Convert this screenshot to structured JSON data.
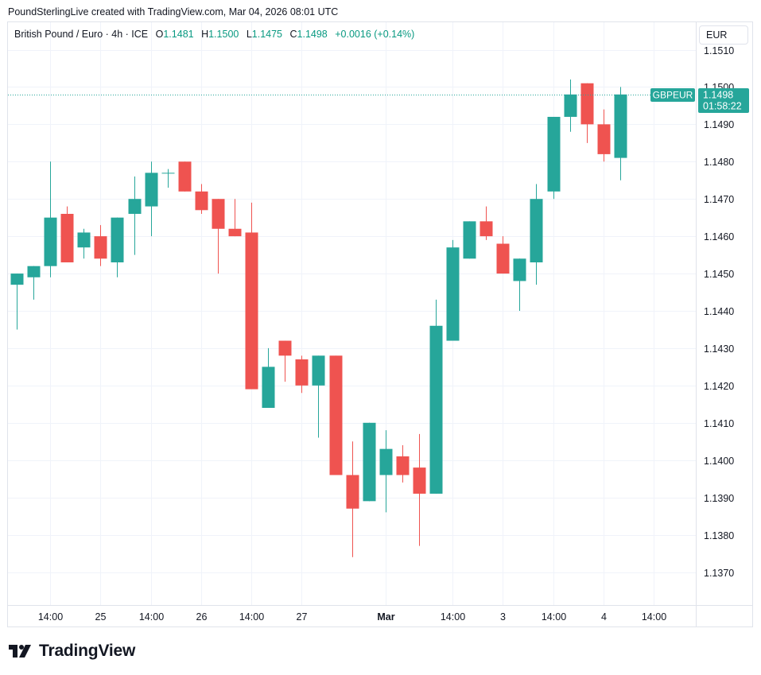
{
  "header": {
    "credit": "PoundSterlingLive created with TradingView.com, Mar 04, 2026 08:01 UTC"
  },
  "legend": {
    "symbol": "British Pound / Euro · 4h · ICE",
    "open_label": "O",
    "open": "1.1481",
    "high_label": "H",
    "high": "1.1500",
    "low_label": "L",
    "low": "1.1475",
    "close_label": "C",
    "close": "1.1498",
    "change": "+0.0016 (+0.14%)"
  },
  "currency": "EUR",
  "price_tag": {
    "symbol": "GBPEUR",
    "price": "1.1498",
    "countdown": "01:58:22"
  },
  "brand": {
    "name": "TradingView",
    "logo_icon": "tradingview-logo-icon"
  },
  "colors": {
    "up": "#26a69a",
    "down": "#ef5350",
    "grid": "#f0f3fa",
    "text": "#131722",
    "last_price_line": "#26a69a"
  },
  "chart_data": {
    "type": "candlestick",
    "title": "British Pound / Euro · 4h · ICE",
    "ylim": [
      1.1362,
      1.1518
    ],
    "y_ticks": [
      "1.1370",
      "1.1380",
      "1.1390",
      "1.1400",
      "1.1410",
      "1.1420",
      "1.1430",
      "1.1440",
      "1.1450",
      "1.1460",
      "1.1470",
      "1.1480",
      "1.1490",
      "1.1500",
      "1.1510"
    ],
    "x_labels": [
      {
        "slot": 2,
        "label": "14:00",
        "bold": false
      },
      {
        "slot": 5,
        "label": "25",
        "bold": false
      },
      {
        "slot": 8,
        "label": "14:00",
        "bold": false
      },
      {
        "slot": 11,
        "label": "26",
        "bold": false
      },
      {
        "slot": 14,
        "label": "14:00",
        "bold": false
      },
      {
        "slot": 17,
        "label": "27",
        "bold": false
      },
      {
        "slot": 22,
        "label": "Mar",
        "bold": true
      },
      {
        "slot": 26,
        "label": "14:00",
        "bold": false
      },
      {
        "slot": 29,
        "label": "3",
        "bold": false
      },
      {
        "slot": 32,
        "label": "14:00",
        "bold": false
      },
      {
        "slot": 35,
        "label": "4",
        "bold": false
      },
      {
        "slot": 38,
        "label": "14:00",
        "bold": false
      }
    ],
    "last_price": 1.1498,
    "candles": [
      {
        "o": 1.1447,
        "h": 1.145,
        "l": 1.1435,
        "c": 1.145
      },
      {
        "o": 1.1449,
        "h": 1.1452,
        "l": 1.1443,
        "c": 1.1452
      },
      {
        "o": 1.1452,
        "h": 1.148,
        "l": 1.1449,
        "c": 1.1465
      },
      {
        "o": 1.1466,
        "h": 1.1468,
        "l": 1.1453,
        "c": 1.1453
      },
      {
        "o": 1.1457,
        "h": 1.1462,
        "l": 1.1454,
        "c": 1.1461
      },
      {
        "o": 1.146,
        "h": 1.1463,
        "l": 1.1452,
        "c": 1.1454
      },
      {
        "o": 1.1453,
        "h": 1.1465,
        "l": 1.1449,
        "c": 1.1465
      },
      {
        "o": 1.1466,
        "h": 1.1476,
        "l": 1.1455,
        "c": 1.147
      },
      {
        "o": 1.1468,
        "h": 1.148,
        "l": 1.146,
        "c": 1.1477
      },
      {
        "o": 1.1477,
        "h": 1.1478,
        "l": 1.1473,
        "c": 1.1477
      },
      {
        "o": 1.148,
        "h": 1.148,
        "l": 1.1472,
        "c": 1.1472
      },
      {
        "o": 1.1472,
        "h": 1.1474,
        "l": 1.1466,
        "c": 1.1467
      },
      {
        "o": 1.147,
        "h": 1.147,
        "l": 1.145,
        "c": 1.1462
      },
      {
        "o": 1.1462,
        "h": 1.147,
        "l": 1.146,
        "c": 1.146
      },
      {
        "o": 1.1461,
        "h": 1.1469,
        "l": 1.1419,
        "c": 1.1419
      },
      {
        "o": 1.1414,
        "h": 1.143,
        "l": 1.1414,
        "c": 1.1425
      },
      {
        "o": 1.1432,
        "h": 1.1432,
        "l": 1.1421,
        "c": 1.1428
      },
      {
        "o": 1.1427,
        "h": 1.1428,
        "l": 1.1418,
        "c": 1.142
      },
      {
        "o": 1.142,
        "h": 1.1428,
        "l": 1.1406,
        "c": 1.1428
      },
      {
        "o": 1.1428,
        "h": 1.1428,
        "l": 1.1396,
        "c": 1.1396
      },
      {
        "o": 1.1396,
        "h": 1.1405,
        "l": 1.1374,
        "c": 1.1387
      },
      {
        "o": 1.1389,
        "h": 1.141,
        "l": 1.1389,
        "c": 1.141
      },
      {
        "o": 1.1396,
        "h": 1.1408,
        "l": 1.1386,
        "c": 1.1403
      },
      {
        "o": 1.1401,
        "h": 1.1404,
        "l": 1.1394,
        "c": 1.1396
      },
      {
        "o": 1.1398,
        "h": 1.1407,
        "l": 1.1377,
        "c": 1.1391
      },
      {
        "o": 1.1391,
        "h": 1.1443,
        "l": 1.1391,
        "c": 1.1436
      },
      {
        "o": 1.1432,
        "h": 1.1459,
        "l": 1.1432,
        "c": 1.1457
      },
      {
        "o": 1.1454,
        "h": 1.1464,
        "l": 1.1454,
        "c": 1.1464
      },
      {
        "o": 1.1464,
        "h": 1.1468,
        "l": 1.1459,
        "c": 1.146
      },
      {
        "o": 1.1458,
        "h": 1.146,
        "l": 1.145,
        "c": 1.145
      },
      {
        "o": 1.1448,
        "h": 1.1454,
        "l": 1.144,
        "c": 1.1454
      },
      {
        "o": 1.1453,
        "h": 1.1474,
        "l": 1.1447,
        "c": 1.147
      },
      {
        "o": 1.1472,
        "h": 1.1492,
        "l": 1.147,
        "c": 1.1492
      },
      {
        "o": 1.1492,
        "h": 1.1502,
        "l": 1.1488,
        "c": 1.1498
      },
      {
        "o": 1.1501,
        "h": 1.1501,
        "l": 1.1485,
        "c": 1.149
      },
      {
        "o": 1.149,
        "h": 1.1494,
        "l": 1.148,
        "c": 1.1482
      },
      {
        "o": 1.1481,
        "h": 1.15,
        "l": 1.1475,
        "c": 1.1498
      }
    ]
  }
}
